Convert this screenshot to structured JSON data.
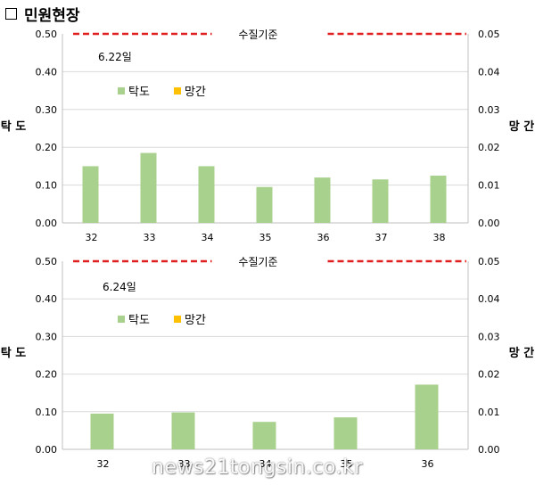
{
  "heading": "민원현장",
  "watermark": "news21tongsin.co.kr",
  "colors": {
    "turbidity": "#a9d18e",
    "manganese": "#ffc000",
    "standard_line": "#e02020"
  },
  "chart_data": [
    {
      "type": "bar",
      "annotation": "6.22일",
      "standard_label": "수질기준",
      "standard_value": 0.5,
      "categories": [
        "32",
        "33",
        "34",
        "35",
        "36",
        "37",
        "38"
      ],
      "series": [
        {
          "name": "탁도",
          "axis": "left",
          "values": [
            0.15,
            0.185,
            0.15,
            0.095,
            0.12,
            0.115,
            0.125
          ]
        },
        {
          "name": "망간",
          "axis": "right",
          "values": [
            0,
            0,
            0,
            0,
            0,
            0,
            0
          ]
        }
      ],
      "ylabel": "탁 도",
      "y2label": "망 간",
      "ylim": [
        0,
        0.5
      ],
      "y2lim": [
        0,
        0.05
      ],
      "yticks": [
        "0.00",
        "0.10",
        "0.20",
        "0.30",
        "0.40",
        "0.50"
      ],
      "y2ticks": [
        "0.00",
        "0.01",
        "0.02",
        "0.03",
        "0.04",
        "0.05"
      ],
      "grid": true,
      "legend": "upper-left"
    },
    {
      "type": "bar",
      "annotation": "6.24일",
      "standard_label": "수질기준",
      "standard_value": 0.5,
      "categories": [
        "32",
        "33",
        "34",
        "35",
        "36"
      ],
      "series": [
        {
          "name": "탁도",
          "axis": "left",
          "values": [
            0.095,
            0.098,
            0.073,
            0.085,
            0.172
          ]
        },
        {
          "name": "망간",
          "axis": "right",
          "values": [
            0,
            0,
            0,
            0,
            0
          ]
        }
      ],
      "ylabel": "탁 도",
      "y2label": "망 간",
      "ylim": [
        0,
        0.5
      ],
      "y2lim": [
        0,
        0.05
      ],
      "yticks": [
        "0.00",
        "0.10",
        "0.20",
        "0.30",
        "0.40",
        "0.50"
      ],
      "y2ticks": [
        "0.00",
        "0.01",
        "0.02",
        "0.03",
        "0.04",
        "0.05"
      ],
      "grid": true,
      "legend": "upper-left"
    }
  ]
}
